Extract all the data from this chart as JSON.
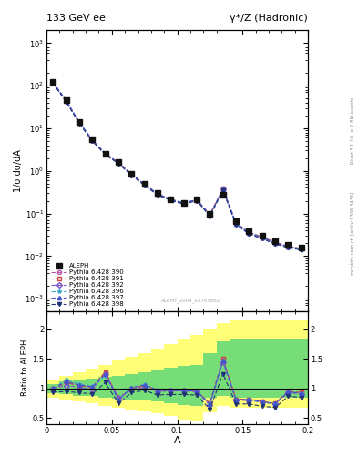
{
  "title_left": "133 GeV ee",
  "title_right": "γ*/Z (Hadronic)",
  "xlabel": "A",
  "ylabel_main": "1/σ dσ/dA",
  "ylabel_ratio": "Ratio to ALEPH",
  "watermark": "ALEPH_2004_S5765862",
  "right_label_top": "Rivet 3.1.10, ≥ 2.8M events",
  "right_label_mid": "mcplots.cern.ch [arXiv:1306.3436]",
  "aleph_x": [
    0.005,
    0.015,
    0.025,
    0.035,
    0.045,
    0.055,
    0.065,
    0.075,
    0.085,
    0.095,
    0.105,
    0.115,
    0.125,
    0.135,
    0.145,
    0.155,
    0.165,
    0.175,
    0.185,
    0.195
  ],
  "aleph_y": [
    120.0,
    45.0,
    14.0,
    5.5,
    2.5,
    1.6,
    0.85,
    0.5,
    0.3,
    0.22,
    0.18,
    0.22,
    0.1,
    0.28,
    0.065,
    0.038,
    0.03,
    0.022,
    0.018,
    0.016
  ],
  "mc_x": [
    0.005,
    0.015,
    0.025,
    0.035,
    0.045,
    0.055,
    0.065,
    0.075,
    0.085,
    0.095,
    0.105,
    0.115,
    0.125,
    0.135,
    0.145,
    0.155,
    0.165,
    0.175,
    0.185,
    0.195
  ],
  "mc390_y": [
    118.0,
    44.0,
    13.5,
    5.2,
    2.55,
    1.58,
    0.84,
    0.49,
    0.29,
    0.215,
    0.175,
    0.21,
    0.095,
    0.38,
    0.06,
    0.036,
    0.028,
    0.021,
    0.017,
    0.015
  ],
  "mc391_y": [
    118.0,
    44.0,
    13.5,
    5.2,
    2.55,
    1.58,
    0.84,
    0.49,
    0.29,
    0.215,
    0.175,
    0.21,
    0.095,
    0.38,
    0.06,
    0.036,
    0.028,
    0.021,
    0.017,
    0.015
  ],
  "mc392_y": [
    118.5,
    44.5,
    13.8,
    5.3,
    2.52,
    1.55,
    0.83,
    0.48,
    0.288,
    0.213,
    0.173,
    0.208,
    0.092,
    0.37,
    0.059,
    0.035,
    0.027,
    0.0205,
    0.0168,
    0.0148
  ],
  "mc396_y": [
    119.0,
    44.8,
    13.9,
    5.32,
    2.5,
    1.53,
    0.82,
    0.475,
    0.285,
    0.215,
    0.175,
    0.21,
    0.09,
    0.365,
    0.058,
    0.0348,
    0.0268,
    0.0202,
    0.0166,
    0.0146
  ],
  "mc397_y": [
    119.5,
    45.0,
    14.0,
    5.35,
    2.51,
    1.54,
    0.825,
    0.478,
    0.287,
    0.216,
    0.176,
    0.211,
    0.091,
    0.368,
    0.0585,
    0.0352,
    0.0272,
    0.0204,
    0.0168,
    0.0148
  ],
  "mc398_y": [
    113.0,
    42.0,
    13.0,
    5.0,
    2.4,
    1.48,
    0.79,
    0.455,
    0.272,
    0.204,
    0.166,
    0.2,
    0.086,
    0.345,
    0.055,
    0.033,
    0.0255,
    0.0192,
    0.0158,
    0.0139
  ],
  "ratio390_y": [
    1.0,
    1.1,
    1.05,
    1.02,
    1.28,
    0.82,
    1.0,
    1.05,
    0.97,
    0.97,
    0.97,
    0.955,
    0.75,
    1.5,
    0.82,
    0.82,
    0.78,
    0.75,
    0.95,
    0.93
  ],
  "ratio391_y": [
    1.0,
    1.1,
    1.05,
    1.02,
    1.28,
    0.82,
    1.0,
    1.05,
    0.97,
    0.97,
    0.97,
    0.955,
    0.75,
    1.5,
    0.82,
    0.82,
    0.78,
    0.75,
    0.95,
    0.93
  ],
  "ratio392_y": [
    1.0,
    1.05,
    1.02,
    0.99,
    1.25,
    0.85,
    0.98,
    1.02,
    0.95,
    0.96,
    0.96,
    0.945,
    0.72,
    1.45,
    0.8,
    0.8,
    0.77,
    0.74,
    0.93,
    0.91
  ],
  "ratio396_y": [
    1.0,
    1.15,
    1.08,
    1.04,
    1.22,
    0.8,
    1.02,
    1.07,
    0.98,
    0.97,
    0.97,
    0.96,
    0.73,
    1.47,
    0.81,
    0.81,
    0.77,
    0.748,
    0.94,
    0.92
  ],
  "ratio397_y": [
    1.0,
    1.12,
    1.06,
    1.03,
    1.24,
    0.81,
    1.01,
    1.06,
    0.97,
    0.965,
    0.965,
    0.955,
    0.74,
    1.48,
    0.815,
    0.815,
    0.775,
    0.75,
    0.945,
    0.915
  ],
  "ratio398_y": [
    0.94,
    0.95,
    0.93,
    0.91,
    1.1,
    0.75,
    0.93,
    0.97,
    0.89,
    0.9,
    0.9,
    0.89,
    0.65,
    1.25,
    0.74,
    0.74,
    0.7,
    0.68,
    0.87,
    0.85
  ],
  "band_x_edges": [
    0.0,
    0.01,
    0.02,
    0.03,
    0.04,
    0.05,
    0.06,
    0.07,
    0.08,
    0.09,
    0.1,
    0.11,
    0.12,
    0.13,
    0.14,
    0.15,
    0.16,
    0.17,
    0.18,
    0.19,
    0.2
  ],
  "green_lo": [
    0.92,
    0.9,
    0.88,
    0.87,
    0.85,
    0.83,
    0.82,
    0.8,
    0.78,
    0.75,
    0.72,
    0.7,
    0.85,
    0.88,
    0.85,
    0.85,
    0.85,
    0.85,
    0.85,
    0.85
  ],
  "green_hi": [
    1.08,
    1.12,
    1.14,
    1.16,
    1.2,
    1.22,
    1.25,
    1.28,
    1.3,
    1.35,
    1.38,
    1.4,
    1.6,
    1.8,
    1.85,
    1.85,
    1.85,
    1.85,
    1.85,
    1.85
  ],
  "yellow_lo": [
    0.85,
    0.82,
    0.78,
    0.75,
    0.7,
    0.67,
    0.65,
    0.62,
    0.58,
    0.53,
    0.48,
    0.45,
    0.6,
    0.7,
    0.68,
    0.68,
    0.68,
    0.68,
    0.68,
    0.68
  ],
  "yellow_hi": [
    1.15,
    1.22,
    1.28,
    1.33,
    1.4,
    1.47,
    1.53,
    1.6,
    1.68,
    1.75,
    1.83,
    1.9,
    2.0,
    2.1,
    2.15,
    2.15,
    2.15,
    2.15,
    2.15,
    2.15
  ],
  "color390": "#bb55aa",
  "color391": "#cc4444",
  "color392": "#7755cc",
  "color396": "#44aacc",
  "color397": "#4455cc",
  "color398": "#223377",
  "marker390": "o",
  "marker391": "s",
  "marker392": "D",
  "marker396": "*",
  "marker397": "^",
  "marker398": "v",
  "xlim": [
    0.0,
    0.2
  ],
  "ylim_main_lo": 0.0005,
  "ylim_main_hi": 2000,
  "ylim_ratio": [
    0.4,
    2.3
  ],
  "aleph_color": "#111111",
  "bg_color": "#ffffff",
  "xticks": [
    0.0,
    0.05,
    0.1,
    0.15,
    0.2
  ],
  "xtick_labels": [
    "0",
    "0.05",
    "0.1",
    "0.15",
    "0.2"
  ]
}
